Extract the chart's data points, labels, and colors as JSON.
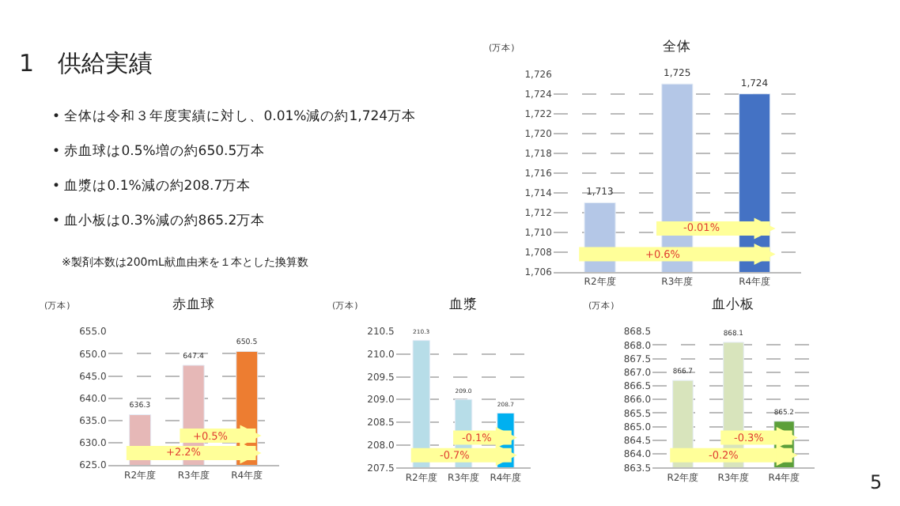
{
  "chart_data": [
    {
      "type": "other",
      "title": "1　供給実績",
      "annotations": [
        "• 全体は令和３年度実績に対し、0.01%減の約1,724万本",
        "• 赤血球は0.5%増の約650.5万本",
        "• 血漿は0.1%減の約208.7万本",
        "• 血小板は0.3%減の約865.2万本",
        "※製剤本数は200mL献血由来を１本とした換算数",
        "5"
      ]
    },
    {
      "type": "bar",
      "title": "全体",
      "ylabel": "(万本)",
      "categories": [
        "R2年度",
        "R3年度",
        "R4年度"
      ],
      "values": [
        1713,
        1725,
        1724
      ],
      "value_labels": [
        "1,713",
        "1,725",
        "1,724"
      ],
      "colors": [
        "#b4c7e7",
        "#b4c7e7",
        "#4472c4"
      ],
      "ylim": [
        1706,
        1726
      ],
      "yticks": [
        {
          "value": 1706,
          "label": "1,706"
        },
        {
          "value": 1708,
          "label": "1,708"
        },
        {
          "value": 1710,
          "label": "1,710"
        },
        {
          "value": 1712,
          "label": "1,712"
        },
        {
          "value": 1714,
          "label": "1,714"
        },
        {
          "value": 1716,
          "label": "1,716"
        },
        {
          "value": 1718,
          "label": "1,718"
        },
        {
          "value": 1720,
          "label": "1,720"
        },
        {
          "value": 1722,
          "label": "1,722"
        },
        {
          "value": 1724,
          "label": "1,724"
        },
        {
          "value": 1726,
          "label": "1,726"
        }
      ],
      "grid": "y",
      "annotations": [
        "-0.01%",
        "+0.6%"
      ]
    },
    {
      "type": "bar",
      "title": "赤血球",
      "ylabel": "(万本)",
      "categories": [
        "R2年度",
        "R3年度",
        "R4年度"
      ],
      "values": [
        636.3,
        647.4,
        650.5
      ],
      "value_labels": [
        "636.3",
        "647.4",
        "650.5"
      ],
      "colors": [
        "#e6b8b7",
        "#e6b8b7",
        "#ed7d31"
      ],
      "ylim": [
        625,
        655
      ],
      "yticks": [
        {
          "value": 625,
          "label": "625.0"
        },
        {
          "value": 630,
          "label": "630.0"
        },
        {
          "value": 635,
          "label": "635.0"
        },
        {
          "value": 640,
          "label": "640.0"
        },
        {
          "value": 645,
          "label": "645.0"
        },
        {
          "value": 650,
          "label": "650.0"
        },
        {
          "value": 655,
          "label": "655.0"
        }
      ],
      "grid": "y",
      "annotations": [
        "+0.5%",
        "+2.2%"
      ]
    },
    {
      "type": "bar",
      "title": "血漿",
      "ylabel": "(万本)",
      "categories": [
        "R2年度",
        "R3年度",
        "R4年度"
      ],
      "values": [
        210.3,
        209.0,
        208.7
      ],
      "value_labels": [
        "210.3",
        "209.0",
        "208.7"
      ],
      "colors": [
        "#b7dde8",
        "#b7dde8",
        "#00b0f0"
      ],
      "ylim": [
        207.5,
        210.5
      ],
      "yticks": [
        207.5,
        {
          "value": 208,
          "label": "208.0"
        },
        208.5,
        {
          "value": 209,
          "label": "209.0"
        },
        209.5,
        {
          "value": 210,
          "label": "210.0"
        },
        210.5
      ],
      "grid": "y",
      "annotations": [
        "-0.1%",
        "-0.7%"
      ]
    },
    {
      "type": "bar",
      "title": "血小板",
      "ylabel": "(万本)",
      "categories": [
        "R2年度",
        "R3年度",
        "R4年度"
      ],
      "values": [
        866.7,
        868.1,
        865.2
      ],
      "value_labels": [
        "866.7",
        "868.1",
        "865.2"
      ],
      "colors": [
        "#d8e4bc",
        "#d8e4bc",
        "#5b9f3a"
      ],
      "ylim": [
        863.5,
        868.5
      ],
      "yticks": [
        863.5,
        {
          "value": 864,
          "label": "864.0"
        },
        864.5,
        {
          "value": 865,
          "label": "865.0"
        },
        865.5,
        {
          "value": 866,
          "label": "866.0"
        },
        866.5,
        {
          "value": 867,
          "label": "867.0"
        },
        867.5,
        {
          "value": 868,
          "label": "868.0"
        },
        868.5
      ],
      "grid": "y",
      "annotations": [
        "-0.3%",
        "-0.2%"
      ]
    }
  ]
}
